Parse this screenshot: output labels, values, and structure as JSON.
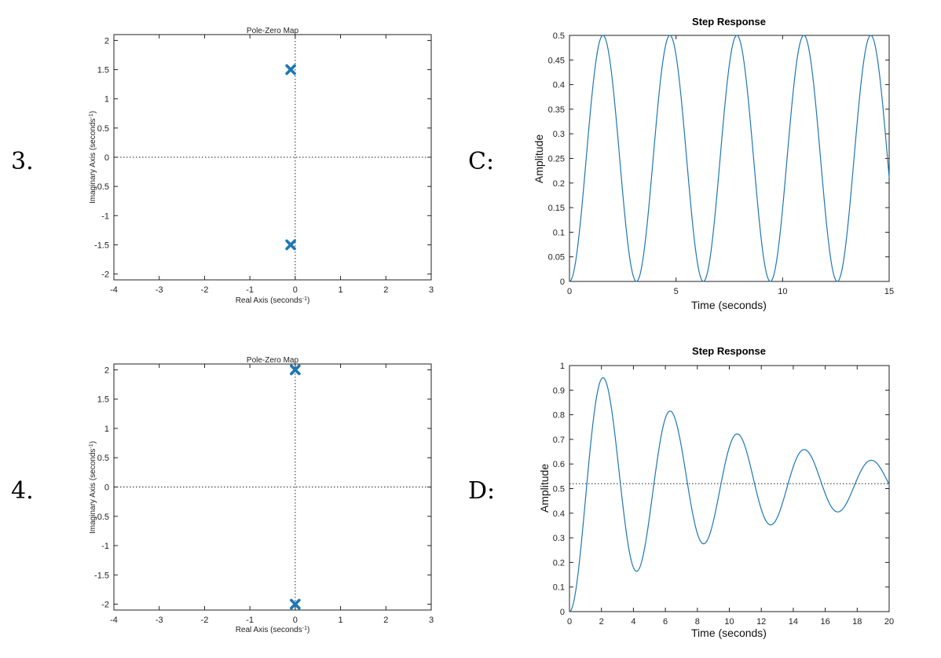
{
  "row_labels": {
    "r3": "3.",
    "rC": "C:",
    "r4": "4.",
    "rD": "D:"
  },
  "chart_data": [
    {
      "id": "pz3",
      "type": "scatter",
      "title": "Pole-Zero Map",
      "xlabel": "Real Axis (seconds",
      "ylabel": "Imaginary Axis (seconds",
      "unit_exp": "-1",
      "xlim": [
        -4,
        3
      ],
      "ylim": [
        -2.1,
        2.1
      ],
      "xticks": [
        -4,
        -3,
        -2,
        -1,
        0,
        1,
        2,
        3
      ],
      "yticks": [
        -2,
        -1.5,
        -1,
        -0.5,
        0,
        0.5,
        1,
        1.5,
        2
      ],
      "color": "#1f77b4",
      "marker": "x",
      "poles": [
        {
          "x": -0.1,
          "y": 1.5
        },
        {
          "x": -0.1,
          "y": -1.5
        }
      ]
    },
    {
      "id": "stepC",
      "type": "line",
      "title": "Step Response",
      "xlabel": "Time (seconds)",
      "ylabel": "Amplitude",
      "xlim": [
        0,
        15
      ],
      "ylim": [
        0,
        0.5
      ],
      "xticks": [
        0,
        5,
        10,
        15
      ],
      "yticks": [
        0,
        0.05,
        0.1,
        0.15,
        0.2,
        0.25,
        0.3,
        0.35,
        0.4,
        0.45,
        0.5
      ],
      "color": "#1f77b4",
      "system": {
        "final_value": 0.25,
        "omega_n": 2.0,
        "zeta": 0.0
      },
      "t_end": 15
    },
    {
      "id": "pz4",
      "type": "scatter",
      "title": "Pole-Zero Map",
      "xlabel": "Real Axis (seconds",
      "ylabel": "Imaginary Axis (seconds",
      "unit_exp": "-1",
      "xlim": [
        -4,
        3
      ],
      "ylim": [
        -2.1,
        2.1
      ],
      "xticks": [
        -4,
        -3,
        -2,
        -1,
        0,
        1,
        2,
        3
      ],
      "yticks": [
        -2,
        -1.5,
        -1,
        -0.5,
        0,
        0.5,
        1,
        1.5,
        2
      ],
      "color": "#1f77b4",
      "marker": "x",
      "poles": [
        {
          "x": 0.0,
          "y": 2.0
        },
        {
          "x": 0.0,
          "y": -2.0
        }
      ]
    },
    {
      "id": "stepD",
      "type": "line",
      "title": "Step Response",
      "xlabel": "Time (seconds)",
      "ylabel": "Amplitude",
      "xlim": [
        0,
        20
      ],
      "ylim": [
        0,
        1
      ],
      "xticks": [
        0,
        2,
        4,
        6,
        8,
        10,
        12,
        14,
        16,
        18,
        20
      ],
      "yticks": [
        0,
        0.1,
        0.2,
        0.3,
        0.4,
        0.5,
        0.6,
        0.7,
        0.8,
        0.9,
        1
      ],
      "color": "#1f77b4",
      "final_value_line": 0.52,
      "system": {
        "final_value": 0.52,
        "omega_n": 1.5,
        "zeta": 0.06
      },
      "t_end": 20
    }
  ]
}
